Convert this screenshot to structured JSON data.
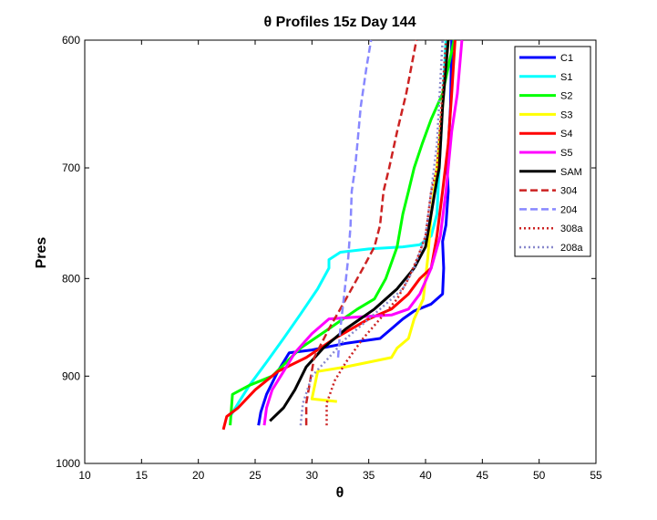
{
  "chart_data": {
    "type": "line",
    "title": "θ Profiles 15z Day 144",
    "xlabel": "θ",
    "ylabel": "Pres",
    "xlim": [
      10,
      55
    ],
    "ylim": [
      1000,
      600
    ],
    "y_scale": "log",
    "y_reversed": true,
    "grid": false,
    "legend_position": "top-right",
    "x_ticks": [
      10,
      15,
      20,
      25,
      30,
      35,
      40,
      45,
      50,
      55
    ],
    "y_ticks": [
      600,
      700,
      800,
      900,
      1000
    ],
    "series": [
      {
        "name": "C1",
        "color": "#0000ff",
        "style": "solid",
        "x": [
          25.3,
          25.5,
          26.0,
          27.0,
          28.0,
          30.0,
          33.0,
          36.0,
          37.0,
          38.0,
          39.0,
          40.5,
          41.5,
          41.6,
          41.5,
          41.8,
          42.0,
          41.9,
          42.2,
          42.3
        ],
        "y": [
          955,
          940,
          920,
          895,
          875,
          872,
          865,
          860,
          850,
          840,
          832,
          825,
          815,
          790,
          765,
          750,
          720,
          700,
          650,
          600
        ]
      },
      {
        "name": "S1",
        "color": "#00ffff",
        "style": "solid",
        "x": [
          22.8,
          23.5,
          24.5,
          26.0,
          27.5,
          29.0,
          30.5,
          31.5,
          31.5,
          32.5,
          35.0,
          38.0,
          39.5,
          40.5,
          41.0,
          41.2,
          41.5,
          41.8
        ],
        "y": [
          945,
          930,
          910,
          885,
          860,
          835,
          810,
          790,
          782,
          775,
          772,
          770,
          768,
          760,
          740,
          700,
          650,
          600
        ]
      },
      {
        "name": "S2",
        "color": "#00ff00",
        "style": "solid",
        "x": [
          22.8,
          23.0,
          24.5,
          26.5,
          29.0,
          31.5,
          34.0,
          35.5,
          36.5,
          37.5,
          38.0,
          38.5,
          39.0,
          39.7,
          40.5,
          41.5,
          42.0,
          42.5
        ],
        "y": [
          955,
          920,
          910,
          900,
          870,
          850,
          830,
          820,
          800,
          770,
          740,
          720,
          700,
          680,
          660,
          640,
          620,
          600
        ]
      },
      {
        "name": "S3",
        "color": "#ffff00",
        "style": "solid",
        "x": [
          32.2,
          30.0,
          30.5,
          33.0,
          35.0,
          37.0,
          37.5,
          38.5,
          39.0,
          39.8,
          40.2,
          40.5,
          41.0,
          41.5,
          42.0
        ],
        "y": [
          928,
          925,
          895,
          890,
          885,
          880,
          870,
          860,
          840,
          820,
          780,
          740,
          700,
          650,
          600
        ]
      },
      {
        "name": "S4",
        "color": "#ff0000",
        "style": "solid",
        "x": [
          22.2,
          22.5,
          23.5,
          25.0,
          27.0,
          29.5,
          32.0,
          35.0,
          37.0,
          38.5,
          39.5,
          40.5,
          41.0,
          41.5,
          42.0,
          42.3,
          42.6
        ],
        "y": [
          960,
          945,
          935,
          915,
          895,
          880,
          860,
          840,
          830,
          815,
          800,
          790,
          760,
          720,
          680,
          640,
          600
        ]
      },
      {
        "name": "S5",
        "color": "#ff00ff",
        "style": "solid",
        "x": [
          25.8,
          26.0,
          26.5,
          27.5,
          28.5,
          30.0,
          31.5,
          34.0,
          37.0,
          38.5,
          39.5,
          40.5,
          41.3,
          41.8,
          42.0,
          42.3,
          42.8,
          43.2
        ],
        "y": [
          955,
          935,
          915,
          895,
          875,
          855,
          840,
          838,
          836,
          830,
          815,
          790,
          760,
          720,
          700,
          670,
          640,
          600
        ]
      },
      {
        "name": "SAM",
        "color": "#000000",
        "style": "solid",
        "x": [
          26.3,
          27.5,
          28.5,
          29.5,
          31.0,
          33.0,
          35.5,
          37.5,
          39.0,
          40.0,
          40.5,
          41.0,
          41.2,
          41.5,
          42.0
        ],
        "y": [
          950,
          935,
          915,
          890,
          870,
          850,
          830,
          810,
          790,
          770,
          740,
          710,
          700,
          650,
          600
        ]
      },
      {
        "name": "304",
        "color": "#cc2222",
        "style": "dashed",
        "x": [
          29.5,
          29.5,
          30.2,
          31.5,
          33.0,
          34.5,
          35.5,
          36.0,
          36.3,
          36.8,
          37.5,
          38.3,
          39.2
        ],
        "y": [
          955,
          930,
          880,
          850,
          820,
          790,
          770,
          750,
          720,
          700,
          670,
          640,
          600
        ]
      },
      {
        "name": "204",
        "color": "#8888ff",
        "style": "dashed",
        "x": [
          32.3,
          32.5,
          32.8,
          33.0,
          33.2,
          33.4,
          33.5,
          33.8,
          34.0,
          34.3,
          34.8,
          35.2
        ],
        "y": [
          880,
          850,
          820,
          800,
          780,
          750,
          720,
          700,
          680,
          650,
          620,
          600
        ]
      },
      {
        "name": "308a",
        "color": "#cc2222",
        "style": "dotted",
        "x": [
          31.3,
          31.3,
          32.0,
          33.0,
          34.5,
          36.0,
          37.5,
          38.5,
          39.3,
          40.0,
          40.5,
          41.0,
          41.4,
          41.8
        ],
        "y": [
          955,
          930,
          905,
          885,
          860,
          840,
          820,
          800,
          780,
          760,
          720,
          700,
          650,
          600
        ]
      },
      {
        "name": "208a",
        "color": "#8888cc",
        "style": "dotted",
        "x": [
          29.0,
          29.2,
          30.0,
          31.5,
          33.0,
          35.0,
          36.5,
          38.0,
          39.0,
          40.0,
          40.5,
          41.0,
          41.5
        ],
        "y": [
          955,
          930,
          900,
          880,
          860,
          840,
          825,
          810,
          790,
          760,
          720,
          680,
          600
        ]
      }
    ]
  }
}
